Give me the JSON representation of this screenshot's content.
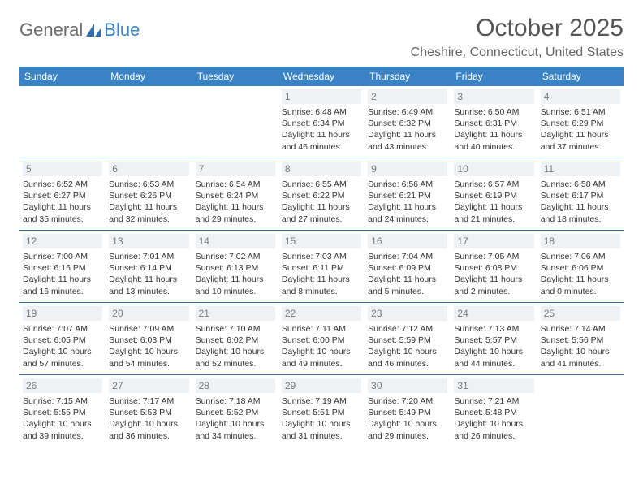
{
  "logo": {
    "gray": "General",
    "blue": "Blue"
  },
  "title": "October 2025",
  "location": "Cheshire, Connecticut, United States",
  "colors": {
    "header_bg": "#3b82c4",
    "daynum_bg": "#eef2f5",
    "rule": "#3b6fa0"
  },
  "dayNames": [
    "Sunday",
    "Monday",
    "Tuesday",
    "Wednesday",
    "Thursday",
    "Friday",
    "Saturday"
  ],
  "weeks": [
    [
      null,
      null,
      null,
      {
        "n": "1",
        "sunrise": "6:48 AM",
        "sunset": "6:34 PM",
        "d_h": 11,
        "d_m": 46
      },
      {
        "n": "2",
        "sunrise": "6:49 AM",
        "sunset": "6:32 PM",
        "d_h": 11,
        "d_m": 43
      },
      {
        "n": "3",
        "sunrise": "6:50 AM",
        "sunset": "6:31 PM",
        "d_h": 11,
        "d_m": 40
      },
      {
        "n": "4",
        "sunrise": "6:51 AM",
        "sunset": "6:29 PM",
        "d_h": 11,
        "d_m": 37
      }
    ],
    [
      {
        "n": "5",
        "sunrise": "6:52 AM",
        "sunset": "6:27 PM",
        "d_h": 11,
        "d_m": 35
      },
      {
        "n": "6",
        "sunrise": "6:53 AM",
        "sunset": "6:26 PM",
        "d_h": 11,
        "d_m": 32
      },
      {
        "n": "7",
        "sunrise": "6:54 AM",
        "sunset": "6:24 PM",
        "d_h": 11,
        "d_m": 29
      },
      {
        "n": "8",
        "sunrise": "6:55 AM",
        "sunset": "6:22 PM",
        "d_h": 11,
        "d_m": 27
      },
      {
        "n": "9",
        "sunrise": "6:56 AM",
        "sunset": "6:21 PM",
        "d_h": 11,
        "d_m": 24
      },
      {
        "n": "10",
        "sunrise": "6:57 AM",
        "sunset": "6:19 PM",
        "d_h": 11,
        "d_m": 21
      },
      {
        "n": "11",
        "sunrise": "6:58 AM",
        "sunset": "6:17 PM",
        "d_h": 11,
        "d_m": 18
      }
    ],
    [
      {
        "n": "12",
        "sunrise": "7:00 AM",
        "sunset": "6:16 PM",
        "d_h": 11,
        "d_m": 16
      },
      {
        "n": "13",
        "sunrise": "7:01 AM",
        "sunset": "6:14 PM",
        "d_h": 11,
        "d_m": 13
      },
      {
        "n": "14",
        "sunrise": "7:02 AM",
        "sunset": "6:13 PM",
        "d_h": 11,
        "d_m": 10
      },
      {
        "n": "15",
        "sunrise": "7:03 AM",
        "sunset": "6:11 PM",
        "d_h": 11,
        "d_m": 8
      },
      {
        "n": "16",
        "sunrise": "7:04 AM",
        "sunset": "6:09 PM",
        "d_h": 11,
        "d_m": 5
      },
      {
        "n": "17",
        "sunrise": "7:05 AM",
        "sunset": "6:08 PM",
        "d_h": 11,
        "d_m": 2
      },
      {
        "n": "18",
        "sunrise": "7:06 AM",
        "sunset": "6:06 PM",
        "d_h": 11,
        "d_m": 0
      }
    ],
    [
      {
        "n": "19",
        "sunrise": "7:07 AM",
        "sunset": "6:05 PM",
        "d_h": 10,
        "d_m": 57
      },
      {
        "n": "20",
        "sunrise": "7:09 AM",
        "sunset": "6:03 PM",
        "d_h": 10,
        "d_m": 54
      },
      {
        "n": "21",
        "sunrise": "7:10 AM",
        "sunset": "6:02 PM",
        "d_h": 10,
        "d_m": 52
      },
      {
        "n": "22",
        "sunrise": "7:11 AM",
        "sunset": "6:00 PM",
        "d_h": 10,
        "d_m": 49
      },
      {
        "n": "23",
        "sunrise": "7:12 AM",
        "sunset": "5:59 PM",
        "d_h": 10,
        "d_m": 46
      },
      {
        "n": "24",
        "sunrise": "7:13 AM",
        "sunset": "5:57 PM",
        "d_h": 10,
        "d_m": 44
      },
      {
        "n": "25",
        "sunrise": "7:14 AM",
        "sunset": "5:56 PM",
        "d_h": 10,
        "d_m": 41
      }
    ],
    [
      {
        "n": "26",
        "sunrise": "7:15 AM",
        "sunset": "5:55 PM",
        "d_h": 10,
        "d_m": 39
      },
      {
        "n": "27",
        "sunrise": "7:17 AM",
        "sunset": "5:53 PM",
        "d_h": 10,
        "d_m": 36
      },
      {
        "n": "28",
        "sunrise": "7:18 AM",
        "sunset": "5:52 PM",
        "d_h": 10,
        "d_m": 34
      },
      {
        "n": "29",
        "sunrise": "7:19 AM",
        "sunset": "5:51 PM",
        "d_h": 10,
        "d_m": 31
      },
      {
        "n": "30",
        "sunrise": "7:20 AM",
        "sunset": "5:49 PM",
        "d_h": 10,
        "d_m": 29
      },
      {
        "n": "31",
        "sunrise": "7:21 AM",
        "sunset": "5:48 PM",
        "d_h": 10,
        "d_m": 26
      },
      null
    ]
  ]
}
